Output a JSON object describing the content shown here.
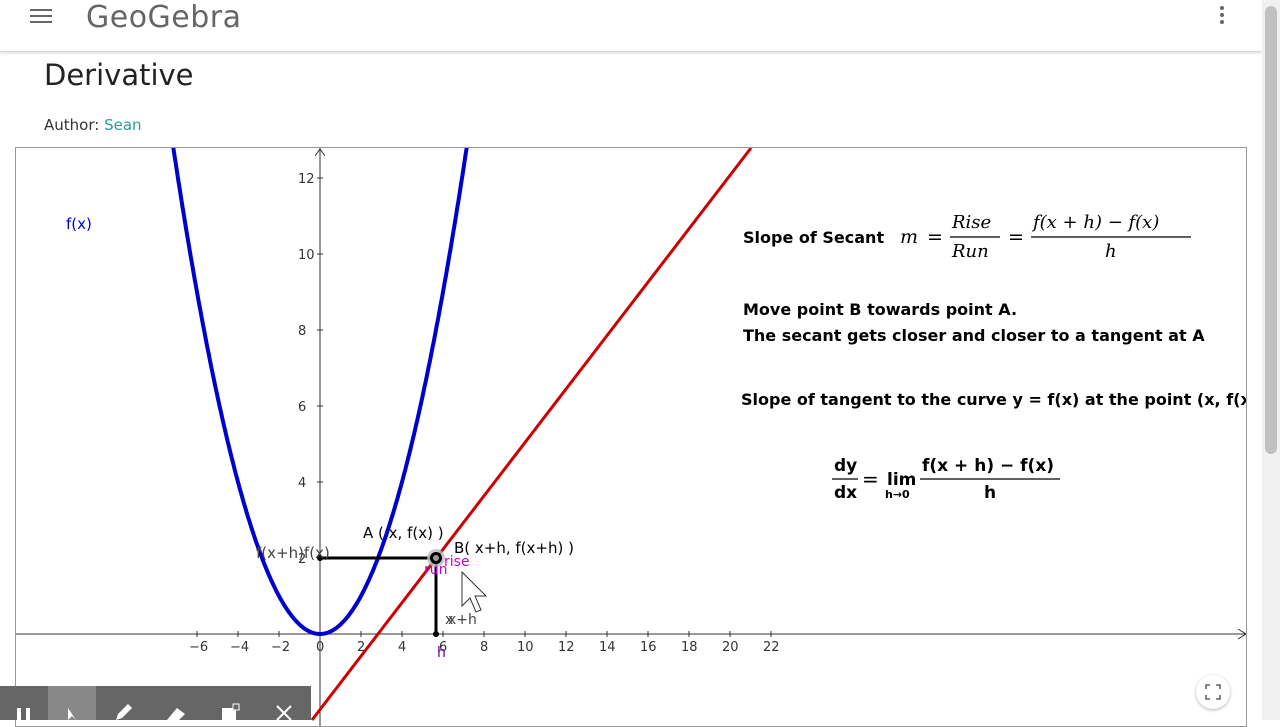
{
  "header": {
    "logo": "GeoGebra",
    "menu_icon": "hamburger-menu-icon",
    "more_icon": "vertical-dots-icon"
  },
  "page": {
    "title": "Derivative",
    "author_label": "Author:",
    "author_name": "Sean"
  },
  "graph": {
    "function_label": "f(x)",
    "point_a_label": "A ( x, f(x) )",
    "point_b_label": "B( x+h, f(x+h) )",
    "y_labels_overlap": "f(x+h)f(x)",
    "rise_label": "rise",
    "run_label": "run",
    "x_plus_h_label": "x+h",
    "x_label": "x",
    "h_label": "h",
    "x_ticks": [
      "−6",
      "−4",
      "−2",
      "0",
      "2",
      "4",
      "6",
      "8",
      "10",
      "12",
      "14",
      "16",
      "18",
      "20",
      "22"
    ],
    "y_ticks": [
      "2",
      "4",
      "6",
      "8",
      "10",
      "12"
    ],
    "curve_color": "#0000cc",
    "secant_color": "#cc0000"
  },
  "text": {
    "slope_secant_label": "Slope of Secant",
    "secant_formula_m": "m",
    "secant_formula_rise": "Rise",
    "secant_formula_run": "Run",
    "secant_formula_num": "f(x + h) − f(x)",
    "secant_formula_den": "h",
    "instruction_1": "Move point B towards point A.",
    "instruction_2": "The secant gets closer and closer to a tangent at A",
    "tangent_label": "Slope of tangent to the curve y = f(x) at the point (x, f(x))",
    "deriv_dy": "dy",
    "deriv_dx": "dx",
    "deriv_lim": "lim",
    "deriv_sub": "h→0",
    "deriv_num": "f(x + h) − f(x)",
    "deriv_den": "h"
  },
  "toolbar": {
    "tools": [
      "pause-icon",
      "move-tool-icon",
      "pen-icon",
      "eraser-icon",
      "shape-icon",
      "close-icon"
    ]
  }
}
